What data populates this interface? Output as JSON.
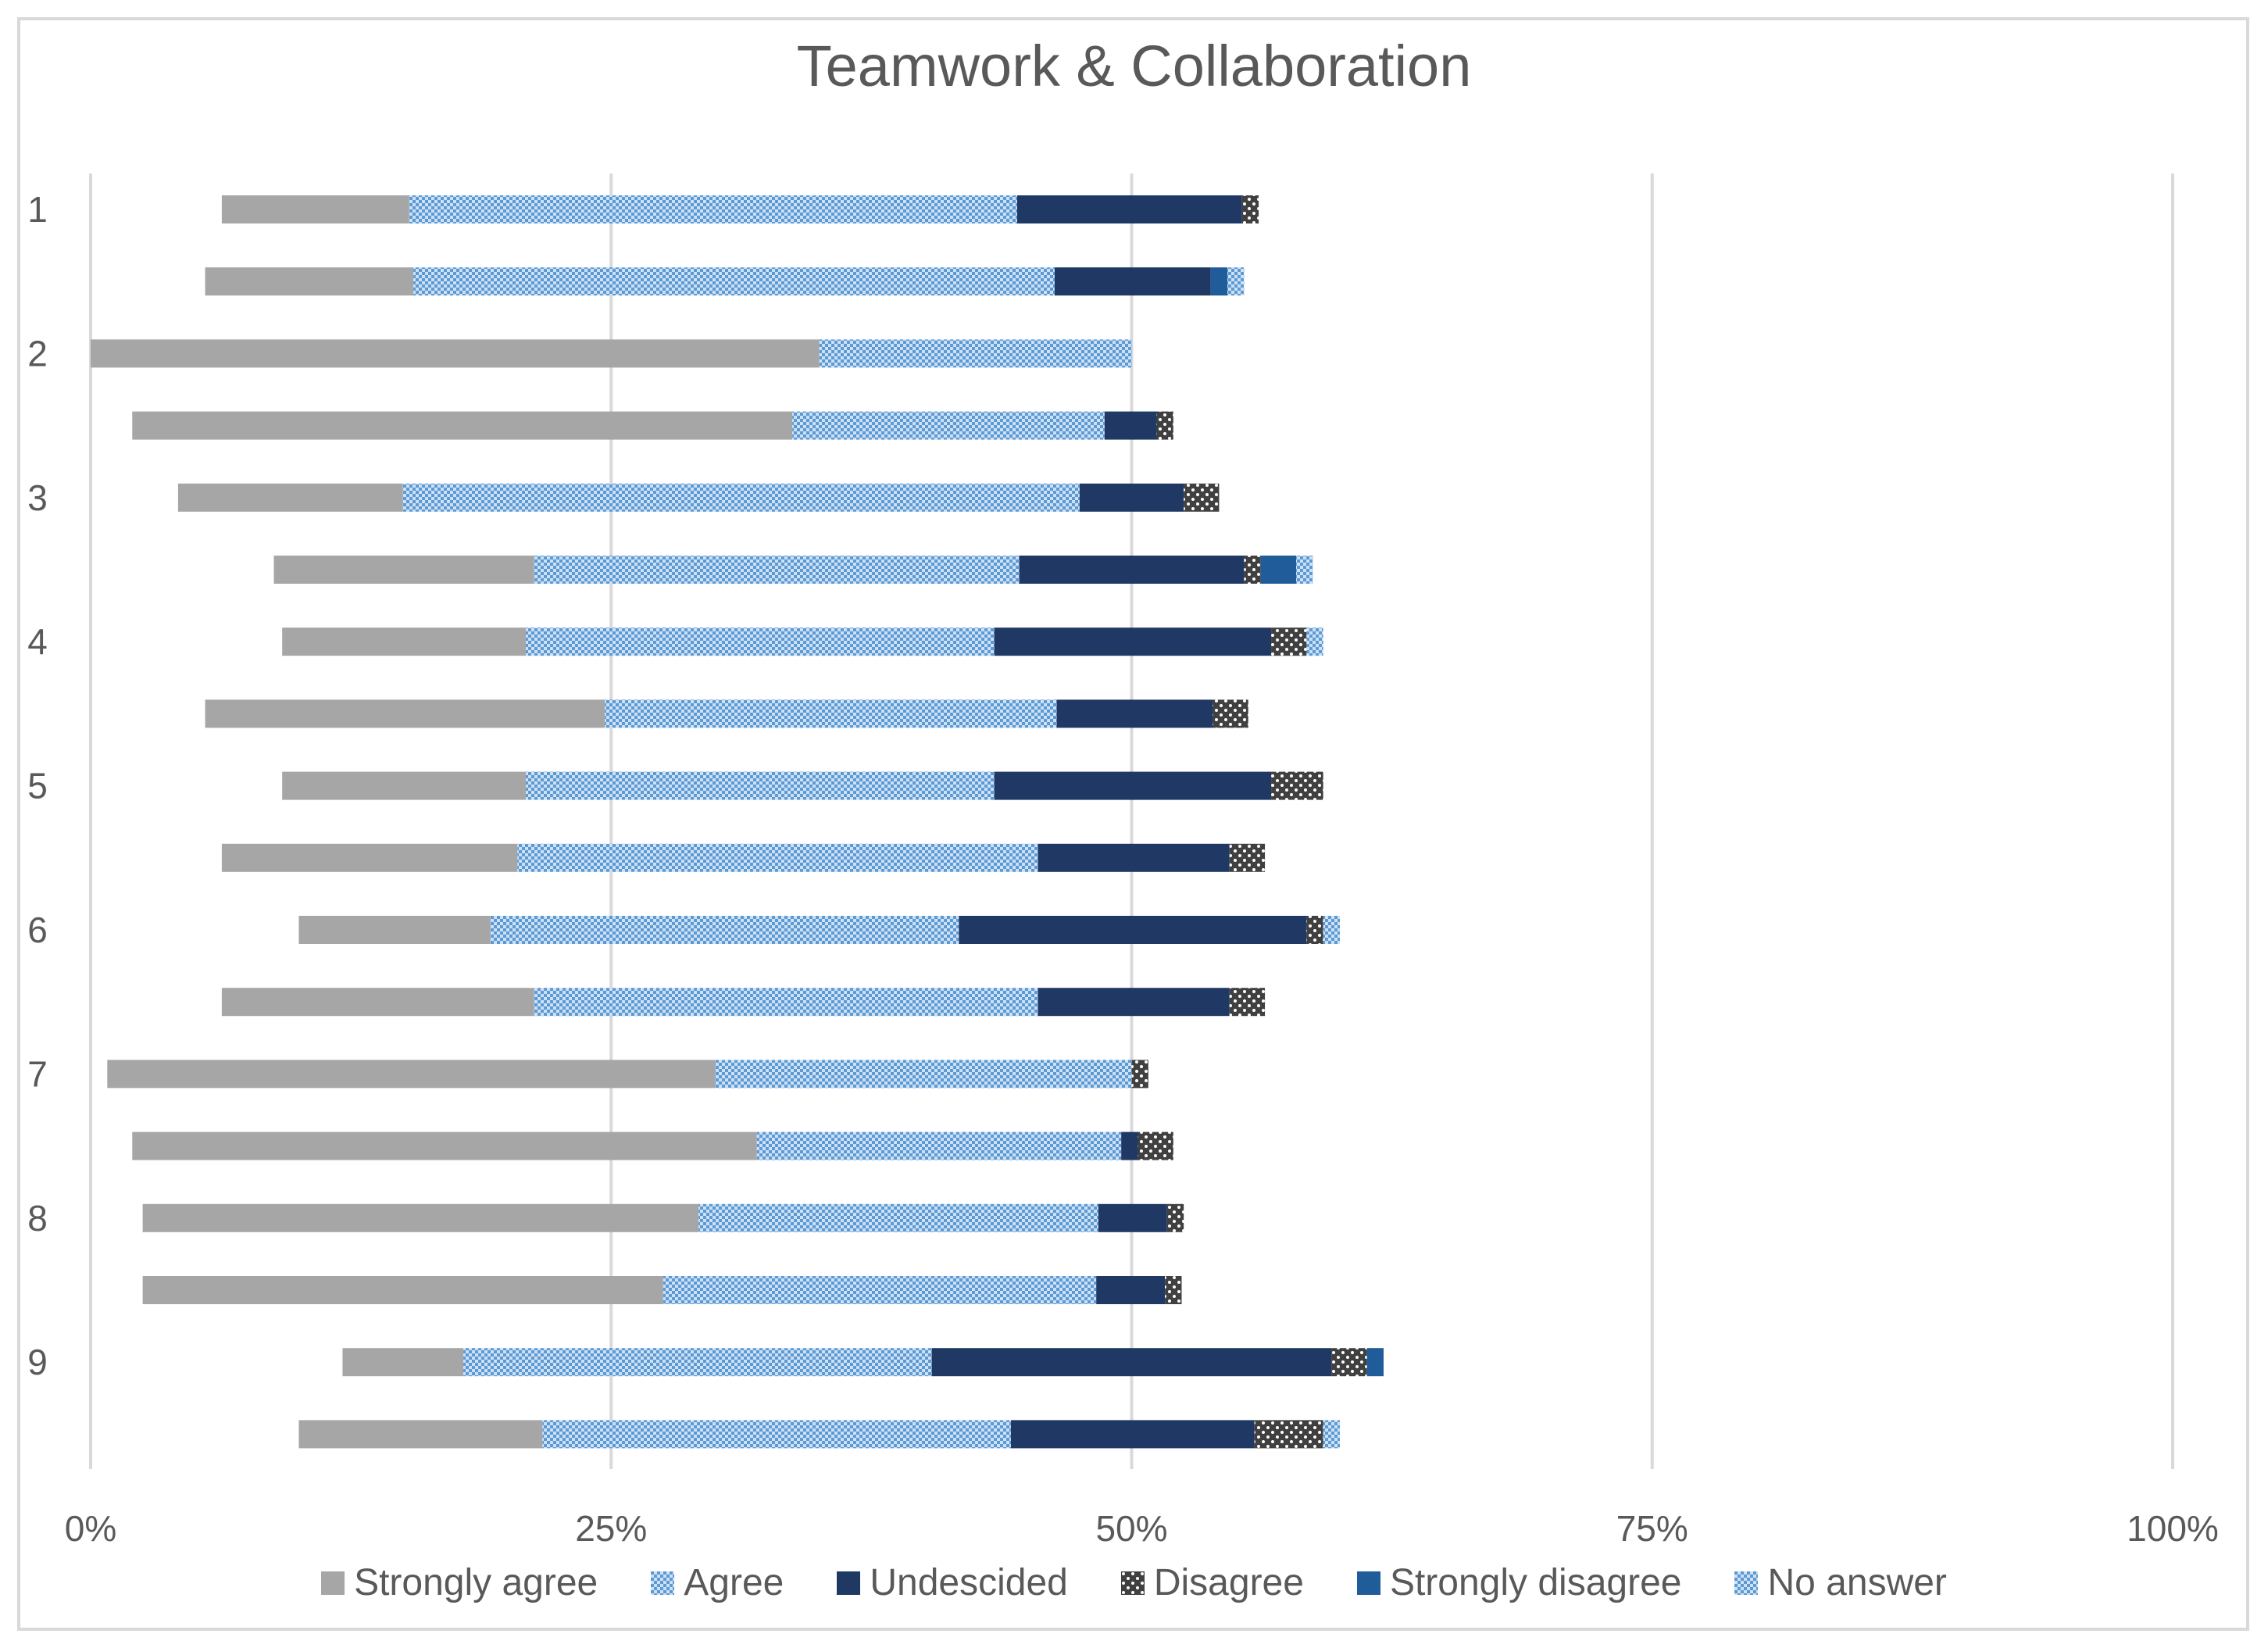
{
  "chart_data": {
    "type": "bar",
    "orientation": "horizontal",
    "stacked": true,
    "title": "Teamwork & Collaboration",
    "xlim": [
      0,
      100
    ],
    "x_ticks": [
      "0%",
      "25%",
      "50%",
      "75%",
      "100%"
    ],
    "y_tick_labels": [
      "1",
      "2",
      "3",
      "4",
      "5",
      "6",
      "7",
      "8",
      "9"
    ],
    "grid": "vertical",
    "legend_position": "bottom",
    "series": [
      {
        "name": "Strongly agree",
        "color": "#a6a6a6",
        "pattern": "solid"
      },
      {
        "name": "Agree",
        "color": "#6fa8dc",
        "pattern": "checker"
      },
      {
        "name": "Undescided",
        "color": "#203864",
        "pattern": "solid"
      },
      {
        "name": "Disagree",
        "color": "#404040",
        "pattern": "dots"
      },
      {
        "name": "Strongly disagree",
        "color": "#1f5c99",
        "pattern": "solid"
      },
      {
        "name": "No answer",
        "color": "#5b8fd6",
        "pattern": "checker"
      }
    ],
    "bars": [
      {
        "start": 6.3,
        "values": [
          9.0,
          29.2,
          10.8,
          0.8,
          0,
          0
        ]
      },
      {
        "start": 5.5,
        "values": [
          10.0,
          30.8,
          7.5,
          0,
          0.8,
          0.8
        ]
      },
      {
        "start": 0.0,
        "values": [
          35.0,
          15.0,
          0,
          0,
          0,
          0
        ]
      },
      {
        "start": 2.0,
        "values": [
          31.7,
          15.0,
          2.5,
          0.8,
          0,
          0
        ]
      },
      {
        "start": 4.2,
        "values": [
          10.8,
          32.5,
          5.0,
          1.7,
          0,
          0
        ]
      },
      {
        "start": 8.8,
        "values": [
          12.5,
          23.3,
          10.8,
          0.8,
          1.7,
          0.8
        ]
      },
      {
        "start": 9.2,
        "values": [
          11.7,
          22.5,
          13.3,
          1.7,
          0,
          0.8
        ]
      },
      {
        "start": 5.5,
        "values": [
          19.2,
          21.7,
          7.5,
          1.7,
          0,
          0
        ]
      },
      {
        "start": 9.2,
        "values": [
          11.7,
          22.5,
          13.3,
          2.5,
          0,
          0
        ]
      },
      {
        "start": 6.3,
        "values": [
          14.2,
          25.0,
          9.2,
          1.7,
          0,
          0
        ]
      },
      {
        "start": 10.0,
        "values": [
          9.2,
          22.5,
          16.7,
          0.8,
          0,
          0.8
        ]
      },
      {
        "start": 6.3,
        "values": [
          15.0,
          24.2,
          9.2,
          1.7,
          0,
          0
        ]
      },
      {
        "start": 0.8,
        "values": [
          29.2,
          20.0,
          0,
          0.8,
          0,
          0
        ]
      },
      {
        "start": 2.0,
        "values": [
          30.0,
          17.5,
          0.8,
          1.7,
          0,
          0
        ]
      },
      {
        "start": 2.5,
        "values": [
          26.7,
          19.2,
          3.3,
          0.8,
          0,
          0
        ]
      },
      {
        "start": 2.5,
        "values": [
          25.0,
          20.8,
          3.3,
          0.8,
          0,
          0
        ]
      },
      {
        "start": 12.1,
        "values": [
          5.8,
          22.5,
          19.2,
          1.7,
          0.8,
          0
        ]
      },
      {
        "start": 10.0,
        "values": [
          11.7,
          22.5,
          11.7,
          3.3,
          0,
          0.8
        ]
      }
    ]
  }
}
